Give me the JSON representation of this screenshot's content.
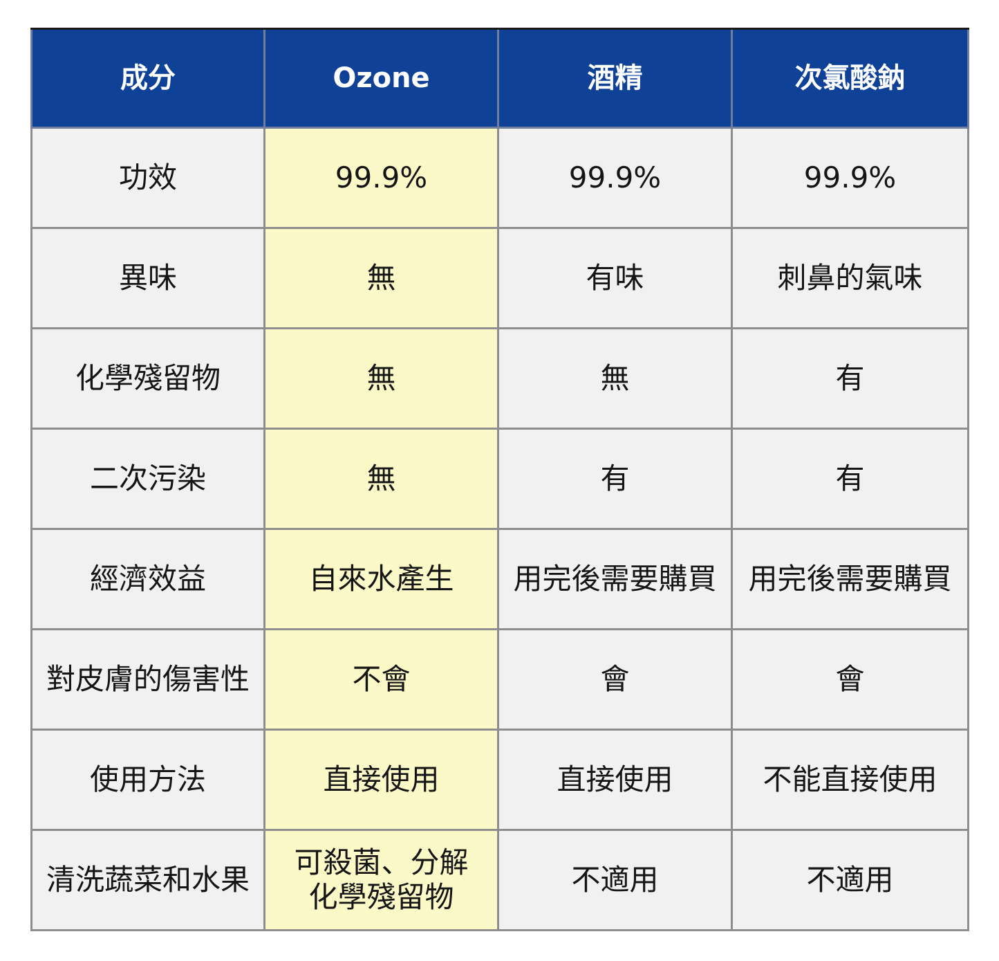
{
  "table": {
    "headers": [
      "成分",
      "Ozone",
      "酒精",
      "次氯酸鈉"
    ],
    "rows": [
      [
        "功效",
        "99.9%",
        "99.9%",
        "99.9%"
      ],
      [
        "異味",
        "無",
        "有味",
        "刺鼻的氣味"
      ],
      [
        "化學殘留物",
        "無",
        "無",
        "有"
      ],
      [
        "二次污染",
        "無",
        "有",
        "有"
      ],
      [
        "經濟效益",
        "自來水產生",
        "用完後需要購買",
        "用完後需要購買"
      ],
      [
        "對皮膚的傷害性",
        "不會",
        "會",
        "會"
      ],
      [
        "使用方法",
        "直接使用",
        "直接使用",
        "不能直接使用"
      ],
      [
        "清洗蔬菜和水果",
        "可殺菌、分解\n化學殘留物",
        "不適用",
        "不適用"
      ]
    ]
  },
  "colors": {
    "header_bg": "#0f4197",
    "header_text": "#ffffff",
    "ozone_bg": "#fbf9c8",
    "cell_bg": "#f1f1f1",
    "border": "#8d8d8d"
  }
}
